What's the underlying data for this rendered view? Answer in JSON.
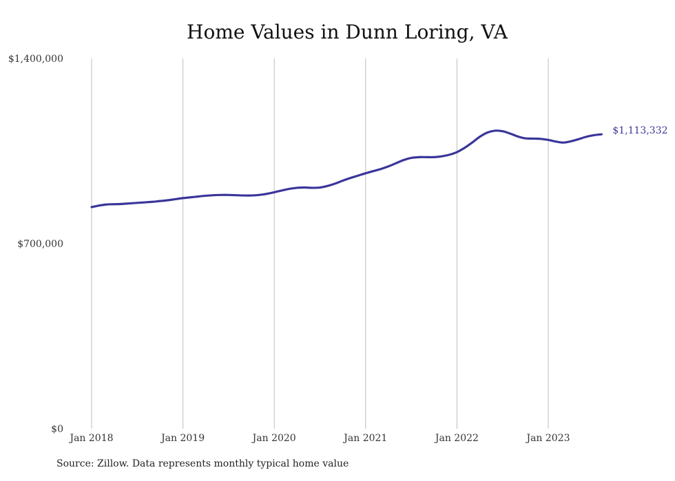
{
  "chart_data": {
    "type": "line",
    "title": "Home Values in Dunn Loring, VA",
    "xlabel": "",
    "ylabel": "",
    "ylim": [
      0,
      1400000
    ],
    "yticks": [
      {
        "value": 0,
        "label": "$0"
      },
      {
        "value": 700000,
        "label": "$700,000"
      },
      {
        "value": 1400000,
        "label": "$1,400,000"
      }
    ],
    "xticks": [
      {
        "value": "2018-01",
        "label": "Jan 2018"
      },
      {
        "value": "2019-01",
        "label": "Jan 2019"
      },
      {
        "value": "2020-01",
        "label": "Jan 2020"
      },
      {
        "value": "2021-01",
        "label": "Jan 2021"
      },
      {
        "value": "2022-01",
        "label": "Jan 2022"
      },
      {
        "value": "2023-01",
        "label": "Jan 2023"
      }
    ],
    "grid": "vertical",
    "color": "#3a3599",
    "series": [
      {
        "name": "",
        "x": [
          "2018-01",
          "2018-02",
          "2018-03",
          "2018-04",
          "2018-05",
          "2018-06",
          "2018-07",
          "2018-08",
          "2018-09",
          "2018-10",
          "2018-11",
          "2018-12",
          "2019-01",
          "2019-02",
          "2019-03",
          "2019-04",
          "2019-05",
          "2019-06",
          "2019-07",
          "2019-08",
          "2019-09",
          "2019-10",
          "2019-11",
          "2019-12",
          "2020-01",
          "2020-02",
          "2020-03",
          "2020-04",
          "2020-05",
          "2020-06",
          "2020-07",
          "2020-08",
          "2020-09",
          "2020-10",
          "2020-11",
          "2020-12",
          "2021-01",
          "2021-02",
          "2021-03",
          "2021-04",
          "2021-05",
          "2021-06",
          "2021-07",
          "2021-08",
          "2021-09",
          "2021-10",
          "2021-11",
          "2021-12",
          "2022-01",
          "2022-02",
          "2022-03",
          "2022-04",
          "2022-05",
          "2022-06",
          "2022-07",
          "2022-08",
          "2022-09",
          "2022-10",
          "2022-11",
          "2022-12",
          "2023-01",
          "2023-02",
          "2023-03",
          "2023-04",
          "2023-05",
          "2023-06",
          "2023-07",
          "2023-08"
        ],
        "values": [
          838000,
          844000,
          848000,
          849000,
          850000,
          852000,
          854000,
          856000,
          858000,
          861000,
          864000,
          868000,
          872000,
          875000,
          878000,
          881000,
          883000,
          884000,
          884000,
          883000,
          882000,
          882000,
          884000,
          888000,
          894000,
          901000,
          907000,
          911000,
          912000,
          911000,
          912000,
          918000,
          927000,
          938000,
          948000,
          957000,
          966000,
          974000,
          982000,
          992000,
          1004000,
          1016000,
          1024000,
          1027000,
          1027000,
          1027000,
          1030000,
          1036000,
          1046000,
          1062000,
          1082000,
          1104000,
          1120000,
          1127000,
          1125000,
          1116000,
          1105000,
          1098000,
          1097000,
          1096000,
          1092000,
          1086000,
          1082000,
          1087000,
          1095000,
          1104000,
          1110000,
          1113332
        ]
      }
    ],
    "end_label": "$1,113,332"
  },
  "title": "Home Values in Dunn Loring, VA",
  "source": "Source: Zillow. Data represents monthly typical home value"
}
